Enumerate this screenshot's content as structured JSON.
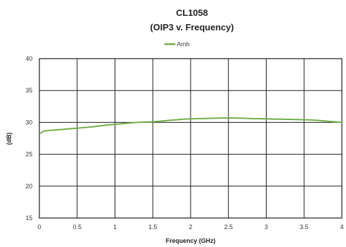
{
  "chart_data": {
    "type": "line",
    "title": "CL1058",
    "subtitle": "(OIP3 v. Frequency)",
    "xlabel": "Frequency (GHz)",
    "ylabel": "(dB)",
    "xlim": [
      0,
      4
    ],
    "ylim": [
      15,
      40
    ],
    "x_ticks": [
      0,
      0.5,
      1,
      1.5,
      2,
      2.5,
      3,
      3.5,
      4
    ],
    "x_tick_labels": [
      "0",
      "0.5",
      "1",
      "1.5",
      "2",
      "2.5",
      "3",
      "3.5",
      "4"
    ],
    "y_ticks": [
      15,
      20,
      25,
      30,
      35,
      40
    ],
    "y_tick_labels": [
      "15",
      "20",
      "25",
      "30",
      "35",
      "40"
    ],
    "grid": true,
    "legend_position": "top-center",
    "series": [
      {
        "name": "Amb",
        "color": "#70ad47",
        "x": [
          0.02,
          0.05,
          0.1,
          0.2,
          0.3,
          0.4,
          0.5,
          0.6,
          0.7,
          0.8,
          0.9,
          1.0,
          1.1,
          1.2,
          1.3,
          1.4,
          1.5,
          1.6,
          1.7,
          1.8,
          1.9,
          2.0,
          2.1,
          2.2,
          2.3,
          2.4,
          2.5,
          2.6,
          2.7,
          2.8,
          2.9,
          3.0,
          3.1,
          3.2,
          3.3,
          3.4,
          3.5,
          3.6,
          3.7,
          3.8,
          3.9,
          4.0
        ],
        "y": [
          28.3,
          28.6,
          28.7,
          28.8,
          28.9,
          29.0,
          29.1,
          29.2,
          29.3,
          29.45,
          29.6,
          29.7,
          29.8,
          29.9,
          30.0,
          30.05,
          30.1,
          30.2,
          30.3,
          30.4,
          30.5,
          30.55,
          30.6,
          30.62,
          30.65,
          30.68,
          30.7,
          30.68,
          30.65,
          30.6,
          30.58,
          30.55,
          30.52,
          30.5,
          30.48,
          30.45,
          30.42,
          30.38,
          30.3,
          30.2,
          30.1,
          30.0
        ]
      }
    ]
  }
}
